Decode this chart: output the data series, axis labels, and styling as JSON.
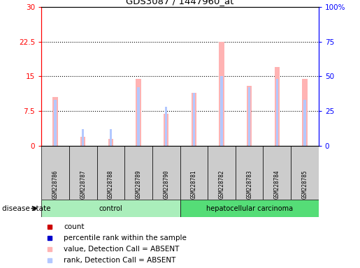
{
  "title": "GDS3087 / 1447960_at",
  "samples": [
    "GSM228786",
    "GSM228787",
    "GSM228788",
    "GSM228789",
    "GSM228790",
    "GSM228781",
    "GSM228782",
    "GSM228783",
    "GSM228784",
    "GSM228785"
  ],
  "groups": [
    "control",
    "control",
    "control",
    "control",
    "control",
    "hepatocellular carcinoma",
    "hepatocellular carcinoma",
    "hepatocellular carcinoma",
    "hepatocellular carcinoma",
    "hepatocellular carcinoma"
  ],
  "value_absent": [
    10.5,
    2.0,
    1.5,
    14.5,
    7.0,
    11.5,
    22.5,
    13.0,
    17.0,
    14.5
  ],
  "rank_absent_pct": [
    33,
    12,
    12,
    42,
    28,
    38,
    50,
    42,
    48,
    33
  ],
  "ylim_left": [
    0,
    30
  ],
  "ylim_right": [
    0,
    100
  ],
  "yticks_left": [
    0,
    7.5,
    15,
    22.5,
    30
  ],
  "yticks_right": [
    0,
    25,
    50,
    75,
    100
  ],
  "yticklabels_left": [
    "0",
    "7.5",
    "15",
    "22.5",
    "30"
  ],
  "yticklabels_right": [
    "0",
    "25",
    "50",
    "75",
    "100%"
  ],
  "bar_color_absent": "#ffb3b3",
  "rank_color_absent": "#b3c8ff",
  "color_count": "#cc0000",
  "color_rank": "#0000cc",
  "group_colors": {
    "control": "#aaeebb",
    "hepatocellular carcinoma": "#55dd77"
  },
  "sample_box_color": "#cccccc",
  "background_color": "#ffffff",
  "disease_state_label": "disease state"
}
